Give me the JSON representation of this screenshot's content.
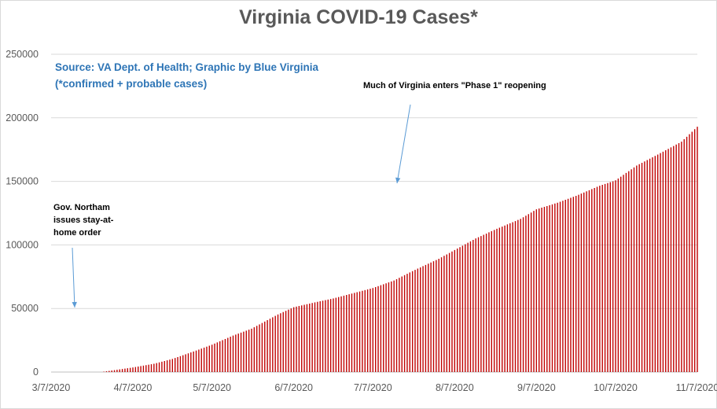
{
  "chart_data": {
    "type": "bar",
    "title": "Virginia COVID-19 Cases*",
    "xlabel": "",
    "ylabel": "",
    "ylim": [
      0,
      250000
    ],
    "y_ticks": [
      "0",
      "50000",
      "100000",
      "150000",
      "200000",
      "250000"
    ],
    "x_tick_labels": [
      "3/7/2020",
      "4/7/2020",
      "5/7/2020",
      "6/7/2020",
      "7/7/2020",
      "8/7/2020",
      "9/7/2020",
      "10/7/2020",
      "11/7/2020"
    ],
    "x_range": [
      "2020-03-07",
      "2020-11-07"
    ],
    "grid": true,
    "bar_color": "#c00000",
    "series": [
      {
        "values_daily_from": "2020-03-07",
        "anchor_points": [
          {
            "date": "2020-03-07",
            "value": 0
          },
          {
            "date": "2020-03-26",
            "value": 0
          },
          {
            "date": "2020-03-31",
            "value": 1500
          },
          {
            "date": "2020-04-07",
            "value": 3600
          },
          {
            "date": "2020-04-15",
            "value": 6500
          },
          {
            "date": "2020-04-22",
            "value": 10300
          },
          {
            "date": "2020-05-01",
            "value": 16900
          },
          {
            "date": "2020-05-07",
            "value": 21500
          },
          {
            "date": "2020-05-15",
            "value": 28700
          },
          {
            "date": "2020-05-22",
            "value": 34100
          },
          {
            "date": "2020-06-01",
            "value": 45300
          },
          {
            "date": "2020-06-07",
            "value": 51000
          },
          {
            "date": "2020-06-15",
            "value": 54800
          },
          {
            "date": "2020-06-22",
            "value": 57900
          },
          {
            "date": "2020-07-07",
            "value": 66100
          },
          {
            "date": "2020-07-15",
            "value": 72000
          },
          {
            "date": "2020-07-22",
            "value": 79400
          },
          {
            "date": "2020-08-01",
            "value": 89100
          },
          {
            "date": "2020-08-07",
            "value": 96000
          },
          {
            "date": "2020-08-15",
            "value": 105100
          },
          {
            "date": "2020-08-22",
            "value": 111800
          },
          {
            "date": "2020-09-01",
            "value": 120500
          },
          {
            "date": "2020-09-07",
            "value": 128000
          },
          {
            "date": "2020-09-15",
            "value": 133200
          },
          {
            "date": "2020-09-22",
            "value": 138600
          },
          {
            "date": "2020-10-01",
            "value": 146600
          },
          {
            "date": "2020-10-07",
            "value": 150800
          },
          {
            "date": "2020-10-15",
            "value": 162400
          },
          {
            "date": "2020-10-22",
            "value": 170000
          },
          {
            "date": "2020-11-01",
            "value": 181200
          },
          {
            "date": "2020-11-07",
            "value": 193000
          }
        ]
      }
    ]
  },
  "source_text": {
    "line1": "Source: VA Dept. of Health; Graphic by Blue Virginia",
    "line2": "(*confirmed + probable cases)"
  },
  "annotations": [
    {
      "text": "Gov. Northam issues stay-at-home order"
    },
    {
      "text": "Much of Virginia enters \"Phase 1\" reopening"
    }
  ],
  "colors": {
    "title": "#595959",
    "source": "#2e75b6",
    "bars": "#c00000",
    "arrow": "#5b9bd5",
    "grid": "#d9d9d9"
  }
}
